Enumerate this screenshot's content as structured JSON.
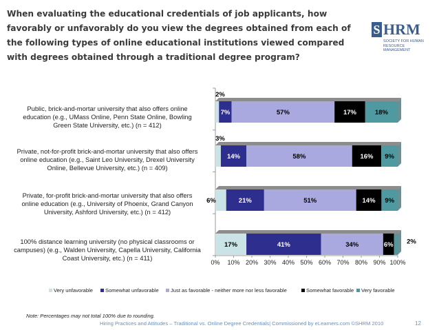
{
  "title": "When evaluating the educational credentials of job applicants, how favorably or unfavorably do you view the degrees obtained from each of the following types of online educational institutions viewed compared with degrees obtained through a traditional degree program?",
  "logo": {
    "main": "SHRM",
    "sub_line1": "SOCIETY FOR HUMAN",
    "sub_line2": "RESOURCE MANAGEMENT"
  },
  "note": "Note: Percentages may not total 100% due to rounding.",
  "footer": "Hiring Practices and Attitudes – Traditional vs. Online Degree Credentials| Commissioned by eLearners.com ©SHRM 2010",
  "page_number": "12",
  "colors": {
    "very_unfavorable": "#c9e3e6",
    "somewhat_unfavorable": "#2e2e8f",
    "neutral": "#a9a9e0",
    "somewhat_favorable": "#000000",
    "very_favorable": "#4e9aa0",
    "top_face": "#8c8c8c",
    "axis": "#9a9a9a"
  },
  "chart_data": {
    "type": "bar",
    "orientation": "horizontal",
    "stacked": true,
    "percent": true,
    "xlim": [
      0,
      100
    ],
    "xticks": [
      "0%",
      "10%",
      "20%",
      "30%",
      "40%",
      "50%",
      "60%",
      "70%",
      "80%",
      "90%",
      "100%"
    ],
    "categories": [
      "Public, brick-and-mortar university that also offers online education (e.g., UMass Online, Penn State Online, Bowling Green State University, etc.) (n = 412)",
      "Private, not-for-profit brick-and-mortar university that also offers online education (e.g., Saint Leo University, Drexel University Online, Bellevue University, etc.) (n = 409)",
      "Private, for-profit brick-and-mortar university that also offers online education (e.g., University of Phoenix, Grand Canyon University, Ashford University, etc.) (n = 412)",
      "100% distance learning university (no physical classrooms or campuses) (e.g., Walden University, Capella University, California Coast University, etc.) (n = 411)"
    ],
    "series": [
      {
        "name": "Very unfavorable",
        "values": [
          2,
          3,
          6,
          17
        ],
        "labels": [
          "2%",
          "3%",
          "6%",
          "17%"
        ]
      },
      {
        "name": "Somewhat unfavorable",
        "values": [
          7,
          14,
          21,
          41
        ],
        "labels": [
          "7%",
          "14%",
          "21%",
          "41%"
        ]
      },
      {
        "name": "Just as favorable - neither more nor less favorable",
        "values": [
          57,
          58,
          51,
          34
        ],
        "labels": [
          "57%",
          "58%",
          "51%",
          "34%"
        ]
      },
      {
        "name": "Somewhat favorable",
        "values": [
          17,
          16,
          14,
          6
        ],
        "labels": [
          "17%",
          "16%",
          "14%",
          "6%"
        ]
      },
      {
        "name": "Very favorable",
        "values": [
          18,
          9,
          9,
          2
        ],
        "labels": [
          "18%",
          "9%",
          "9%",
          "2%"
        ]
      }
    ],
    "legend": [
      "Very unfavorable",
      "Somewhat unfavorable",
      "Just as favorable - neither more nor less favorable",
      "Somewhat favorable",
      "Very favorable"
    ]
  }
}
